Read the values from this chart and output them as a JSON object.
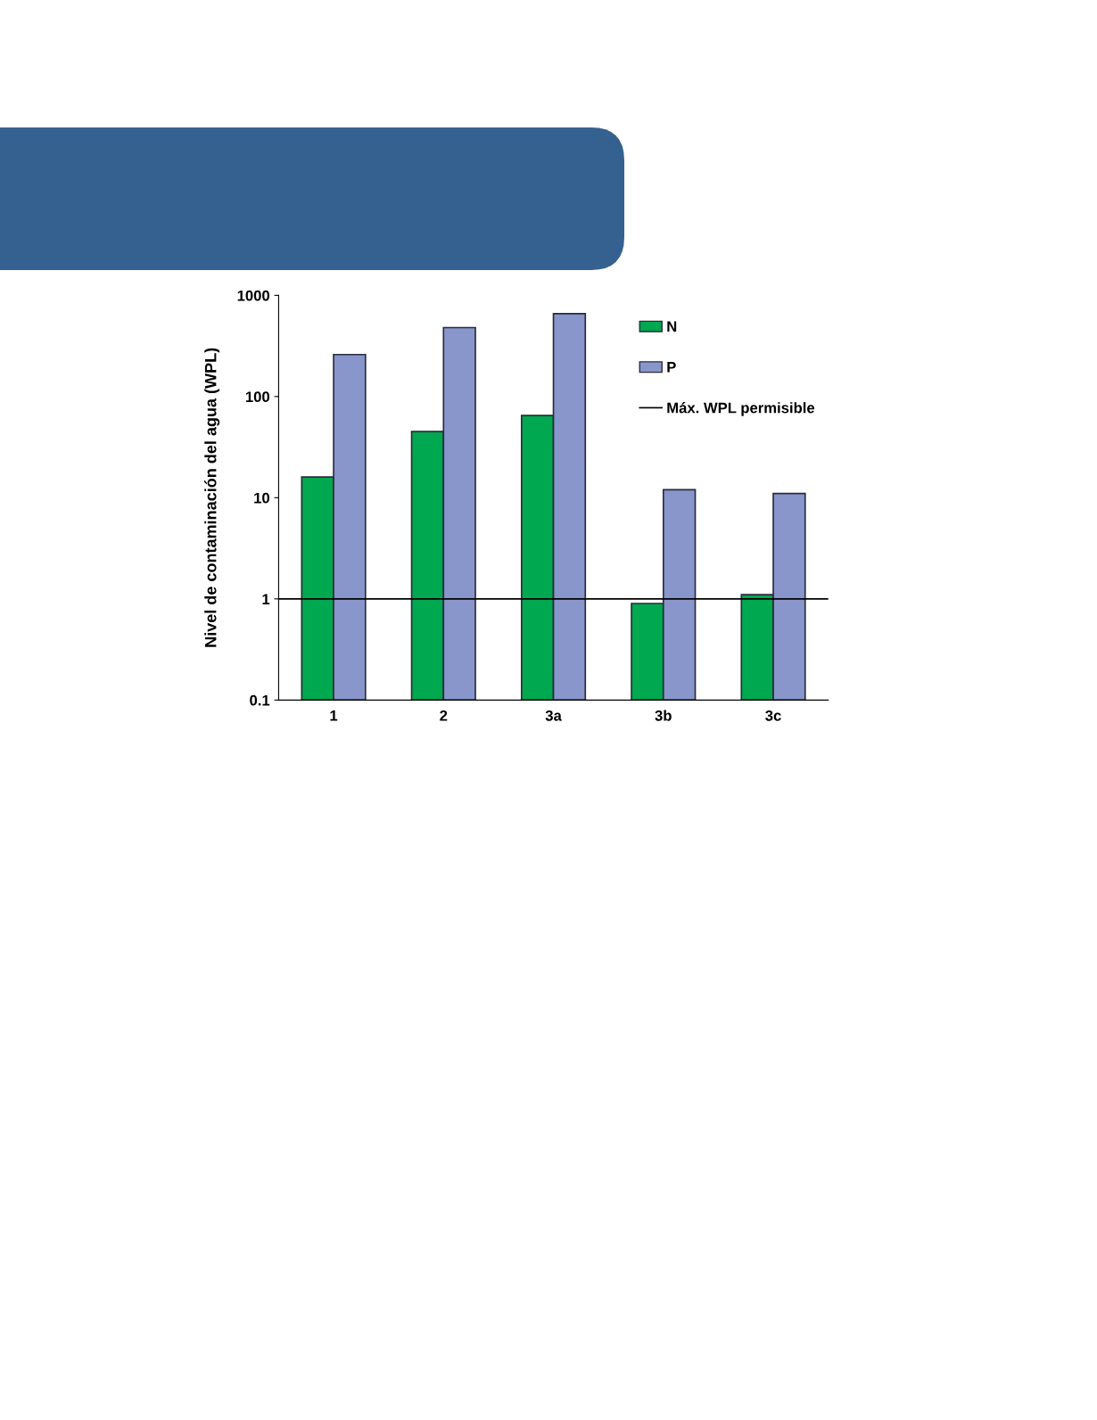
{
  "chart_data": {
    "type": "bar",
    "ylabel": "Nivel de contaminación del agua (WPL)",
    "categories": [
      "1",
      "2",
      "3a",
      "3b",
      "3c"
    ],
    "series": [
      {
        "name": "N",
        "color": "#00a84f",
        "values": [
          16,
          45,
          65,
          0.9,
          1.1
        ]
      },
      {
        "name": "P",
        "color": "#8896cc",
        "values": [
          260,
          480,
          660,
          12,
          11
        ]
      }
    ],
    "log": "y",
    "ylim": [
      0.1,
      1000
    ],
    "yticks": [
      0.1,
      1,
      10,
      100,
      1000
    ],
    "grid": false,
    "legend": "top right",
    "ref_lines": [
      {
        "axis": "y",
        "value": 1,
        "label": "Máx. WPL permisible",
        "color": "#000000"
      }
    ]
  }
}
